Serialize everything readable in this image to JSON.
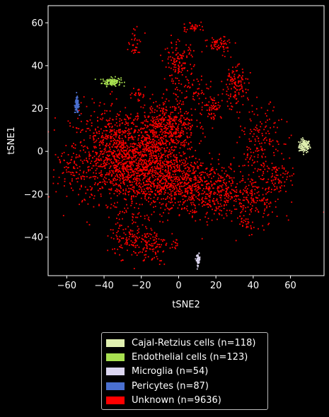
{
  "chart_data": {
    "type": "scatter",
    "xlabel": "tSNE2",
    "ylabel": "tSNE1",
    "xlim": [
      -70,
      78
    ],
    "ylim": [
      -58,
      68
    ],
    "xticks": [
      -60,
      -40,
      -20,
      0,
      20,
      40,
      60
    ],
    "yticks": [
      -40,
      -20,
      0,
      20,
      40,
      60
    ],
    "tick_labels_x": [
      "−60",
      "−40",
      "−20",
      "0",
      "20",
      "40",
      "60"
    ],
    "tick_labels_y": [
      "−40",
      "−20",
      "0",
      "20",
      "40",
      "60"
    ],
    "grid": false,
    "legend_position": "below",
    "series": [
      {
        "name": "Cajal-Retzius cells (n=118)",
        "color": "#e0f0b0",
        "n": 118,
        "clusters": [
          {
            "cx": 67.5,
            "cy": 2.5,
            "sx": 1.5,
            "sy": 1.5,
            "w": 1
          }
        ]
      },
      {
        "name": "Endothelial cells (n=123)",
        "color": "#a8e050",
        "n": 123,
        "clusters": [
          {
            "cx": -36,
            "cy": 32.5,
            "sx": 2.5,
            "sy": 1.0,
            "w": 1
          }
        ]
      },
      {
        "name": "Microglia (n=54)",
        "color": "#dcd6f0",
        "n": 54,
        "clusters": [
          {
            "cx": 10.5,
            "cy": -50.5,
            "sx": 0.5,
            "sy": 1.3,
            "w": 1
          }
        ]
      },
      {
        "name": "Pericytes (n=87)",
        "color": "#4a6fd0",
        "n": 87,
        "clusters": [
          {
            "cx": -54.5,
            "cy": 21.5,
            "sx": 0.6,
            "sy": 1.8,
            "w": 1
          }
        ]
      },
      {
        "name": "Unknown (n=9636)",
        "color": "#ff0000",
        "n": 9636,
        "clusters": [
          {
            "cx": -30,
            "cy": -2,
            "sx": 14,
            "sy": 11,
            "w": 28
          },
          {
            "cx": -12,
            "cy": -10,
            "sx": 12,
            "sy": 9,
            "w": 18
          },
          {
            "cx": -5,
            "cy": 12,
            "sx": 7,
            "sy": 6,
            "w": 9
          },
          {
            "cx": 12,
            "cy": -18,
            "sx": 12,
            "sy": 6,
            "w": 10
          },
          {
            "cx": 35,
            "cy": -22,
            "sx": 10,
            "sy": 7,
            "w": 6
          },
          {
            "cx": 45,
            "cy": 3,
            "sx": 6,
            "sy": 9,
            "w": 4
          },
          {
            "cx": 55,
            "cy": -12,
            "sx": 4,
            "sy": 3,
            "w": 1.2
          },
          {
            "cx": -55,
            "cy": -9,
            "sx": 4,
            "sy": 3,
            "w": 1.2
          },
          {
            "cx": -25,
            "cy": -40,
            "sx": 6,
            "sy": 5,
            "w": 3
          },
          {
            "cx": -14,
            "cy": -44,
            "sx": 4,
            "sy": 4,
            "w": 1.8
          },
          {
            "cx": -2,
            "cy": -43,
            "sx": 1.2,
            "sy": 1.5,
            "w": 0.3
          },
          {
            "cx": -30,
            "cy": -51,
            "sx": 0.6,
            "sy": 0.6,
            "w": 0.05
          },
          {
            "cx": 30,
            "cy": 30,
            "sx": 3.5,
            "sy": 5,
            "w": 3
          },
          {
            "cx": 0,
            "cy": 41,
            "sx": 4,
            "sy": 5,
            "w": 3
          },
          {
            "cx": 22,
            "cy": 50,
            "sx": 4,
            "sy": 2,
            "w": 1.5
          },
          {
            "cx": 18,
            "cy": 21,
            "sx": 2.5,
            "sy": 3,
            "w": 1.5
          },
          {
            "cx": 8,
            "cy": 58,
            "sx": 3,
            "sy": 1.3,
            "w": 0.8
          },
          {
            "cx": -23,
            "cy": 50,
            "sx": 2,
            "sy": 3,
            "w": 0.8
          },
          {
            "cx": -21,
            "cy": 27,
            "sx": 1.5,
            "sy": 1.5,
            "w": 0.4
          },
          {
            "cx": 36,
            "cy": -34,
            "sx": 2,
            "sy": 1.5,
            "w": 0.4
          },
          {
            "cx": 8,
            "cy": 28,
            "sx": 6,
            "sy": 4,
            "w": 1.2
          }
        ]
      }
    ]
  }
}
